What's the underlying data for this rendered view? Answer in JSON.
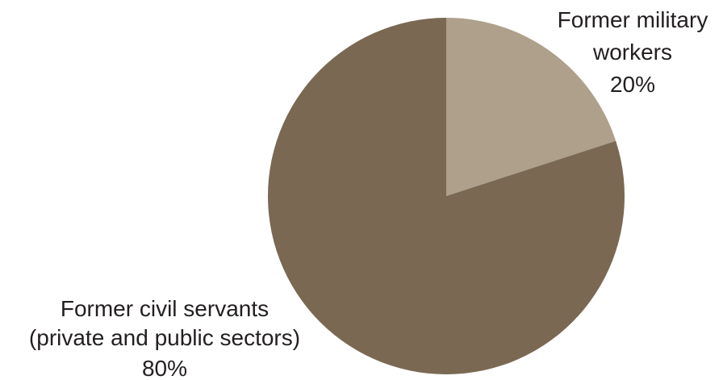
{
  "chart_data": {
    "type": "pie",
    "slices": [
      {
        "name_lines": [
          "Former military",
          "workers"
        ],
        "value_label": "20%",
        "value": 20,
        "color": "#aea08b"
      },
      {
        "name_lines": [
          "Former civil servants",
          "(private and public sectors)"
        ],
        "value_label": "80%",
        "value": 80,
        "color": "#7a6853"
      }
    ],
    "start": "12 o'clock",
    "direction": "clockwise"
  }
}
